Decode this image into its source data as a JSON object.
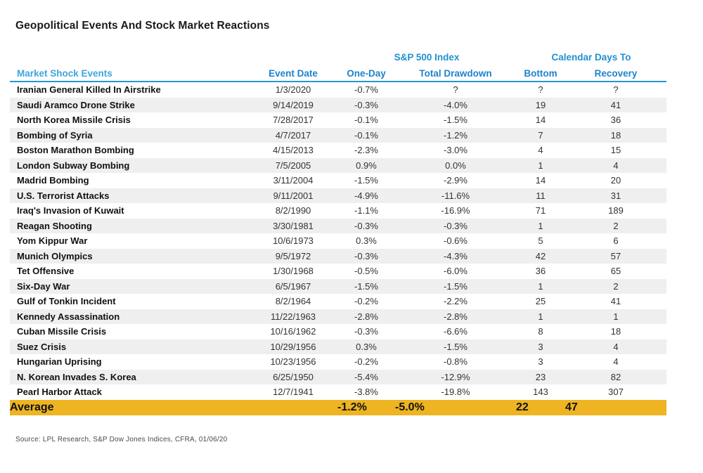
{
  "title": "Geopolitical Events And Stock Market Reactions",
  "header": {
    "sp500_group_label": "S&P 500 Index",
    "calendar_group_label": "Calendar Days To"
  },
  "chart_data": {
    "type": "table",
    "columns": [
      "Market Shock Events",
      "Event Date",
      "One-Day",
      "Total Drawdown",
      "Bottom",
      "Recovery"
    ],
    "rows": [
      {
        "event": "Iranian General Killed In Airstrike",
        "date": "1/3/2020",
        "one_day": "-0.7%",
        "total_drawdown": "?",
        "bottom": "?",
        "recovery": "?"
      },
      {
        "event": "Saudi Aramco Drone Strike",
        "date": "9/14/2019",
        "one_day": "-0.3%",
        "total_drawdown": "-4.0%",
        "bottom": "19",
        "recovery": "41"
      },
      {
        "event": "North Korea Missile Crisis",
        "date": "7/28/2017",
        "one_day": "-0.1%",
        "total_drawdown": "-1.5%",
        "bottom": "14",
        "recovery": "36"
      },
      {
        "event": "Bombing of Syria",
        "date": "4/7/2017",
        "one_day": "-0.1%",
        "total_drawdown": "-1.2%",
        "bottom": "7",
        "recovery": "18"
      },
      {
        "event": "Boston Marathon Bombing",
        "date": "4/15/2013",
        "one_day": "-2.3%",
        "total_drawdown": "-3.0%",
        "bottom": "4",
        "recovery": "15"
      },
      {
        "event": "London Subway Bombing",
        "date": "7/5/2005",
        "one_day": "0.9%",
        "total_drawdown": "0.0%",
        "bottom": "1",
        "recovery": "4"
      },
      {
        "event": "Madrid Bombing",
        "date": "3/11/2004",
        "one_day": "-1.5%",
        "total_drawdown": "-2.9%",
        "bottom": "14",
        "recovery": "20"
      },
      {
        "event": "U.S. Terrorist Attacks",
        "date": "9/11/2001",
        "one_day": "-4.9%",
        "total_drawdown": "-11.6%",
        "bottom": "11",
        "recovery": "31"
      },
      {
        "event": "Iraq's Invasion of Kuwait",
        "date": "8/2/1990",
        "one_day": "-1.1%",
        "total_drawdown": "-16.9%",
        "bottom": "71",
        "recovery": "189"
      },
      {
        "event": "Reagan Shooting",
        "date": "3/30/1981",
        "one_day": "-0.3%",
        "total_drawdown": "-0.3%",
        "bottom": "1",
        "recovery": "2"
      },
      {
        "event": "Yom Kippur War",
        "date": "10/6/1973",
        "one_day": "0.3%",
        "total_drawdown": "-0.6%",
        "bottom": "5",
        "recovery": "6"
      },
      {
        "event": "Munich Olympics",
        "date": "9/5/1972",
        "one_day": "-0.3%",
        "total_drawdown": "-4.3%",
        "bottom": "42",
        "recovery": "57"
      },
      {
        "event": "Tet Offensive",
        "date": "1/30/1968",
        "one_day": "-0.5%",
        "total_drawdown": "-6.0%",
        "bottom": "36",
        "recovery": "65"
      },
      {
        "event": "Six-Day War",
        "date": "6/5/1967",
        "one_day": "-1.5%",
        "total_drawdown": "-1.5%",
        "bottom": "1",
        "recovery": "2"
      },
      {
        "event": "Gulf of Tonkin Incident",
        "date": "8/2/1964",
        "one_day": "-0.2%",
        "total_drawdown": "-2.2%",
        "bottom": "25",
        "recovery": "41"
      },
      {
        "event": "Kennedy Assassination",
        "date": "11/22/1963",
        "one_day": "-2.8%",
        "total_drawdown": "-2.8%",
        "bottom": "1",
        "recovery": "1"
      },
      {
        "event": "Cuban Missile Crisis",
        "date": "10/16/1962",
        "one_day": "-0.3%",
        "total_drawdown": "-6.6%",
        "bottom": "8",
        "recovery": "18"
      },
      {
        "event": "Suez Crisis",
        "date": "10/29/1956",
        "one_day": "0.3%",
        "total_drawdown": "-1.5%",
        "bottom": "3",
        "recovery": "4"
      },
      {
        "event": "Hungarian Uprising",
        "date": "10/23/1956",
        "one_day": "-0.2%",
        "total_drawdown": "-0.8%",
        "bottom": "3",
        "recovery": "4"
      },
      {
        "event": "N. Korean Invades S. Korea",
        "date": "6/25/1950",
        "one_day": "-5.4%",
        "total_drawdown": "-12.9%",
        "bottom": "23",
        "recovery": "82"
      },
      {
        "event": "Pearl Harbor Attack",
        "date": "12/7/1941",
        "one_day": "-3.8%",
        "total_drawdown": "-19.8%",
        "bottom": "143",
        "recovery": "307"
      }
    ],
    "average_row": {
      "event": "Average",
      "date": "",
      "one_day": "-1.2%",
      "total_drawdown": "-5.0%",
      "bottom": "22",
      "recovery": "47"
    }
  },
  "source": "Source: LPL Research, S&P Dow Jones Indices, CFRA, 01/06/20",
  "colors": {
    "header_blue": "#1d83cc",
    "market_shock_header_blue": "#3fa5dc",
    "header_underline_blue": "#2b94d4",
    "row_stripe_gray": "#efefef",
    "average_highlight_gold": "#eeb422"
  }
}
